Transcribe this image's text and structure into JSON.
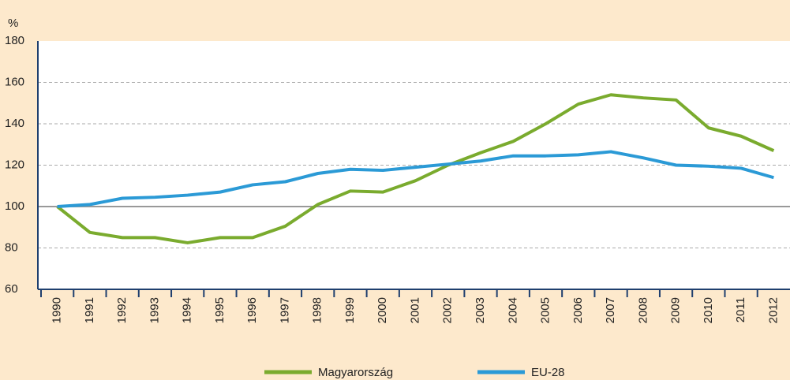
{
  "chart_data": {
    "type": "line",
    "y_label": "%",
    "categories": [
      "1990",
      "1991",
      "1992",
      "1993",
      "1994",
      "1995",
      "1996",
      "1997",
      "1998",
      "1999",
      "2000",
      "2001",
      "2002",
      "2003",
      "2004",
      "2005",
      "2006",
      "2007",
      "2008",
      "2009",
      "2010",
      "2011",
      "2012"
    ],
    "series": [
      {
        "name": "Magyarország",
        "color": "#7aab2e",
        "values": [
          100,
          87.5,
          85,
          85,
          82.5,
          85,
          85,
          90.5,
          101,
          107.5,
          107,
          112.5,
          120,
          126,
          131.5,
          140,
          149.5,
          154,
          152.5,
          151.5,
          138,
          134,
          127
        ]
      },
      {
        "name": "EU-28",
        "color": "#2b9ad6",
        "values": [
          100,
          101,
          104,
          104.5,
          105.5,
          107,
          110.5,
          112,
          116,
          118,
          117.5,
          119,
          120.5,
          122,
          124.5,
          124.5,
          125,
          126.5,
          123.5,
          120,
          119.5,
          118.5,
          114
        ]
      }
    ],
    "ylim": [
      60,
      180
    ],
    "yticks": [
      60,
      80,
      100,
      120,
      140,
      160,
      180
    ],
    "grid": true,
    "reference_line": 100,
    "legend": "bottom"
  }
}
